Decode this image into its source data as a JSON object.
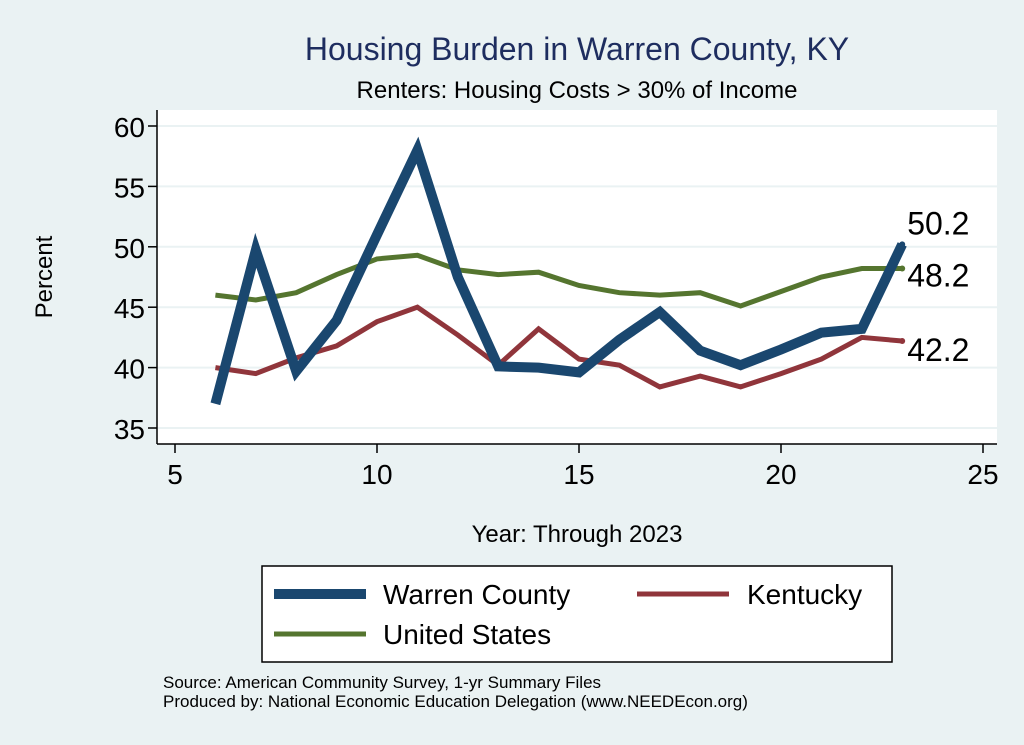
{
  "chart_data": {
    "type": "line",
    "title": "Housing Burden in Warren County, KY",
    "subtitle": "Renters: Housing Costs > 30% of Income",
    "xlabel": "Year: Through 2023",
    "ylabel": "Percent",
    "xlim": [
      5,
      25
    ],
    "ylim": [
      34,
      61
    ],
    "xticks": [
      5,
      10,
      15,
      20,
      25
    ],
    "yticks": [
      35,
      40,
      45,
      50,
      55,
      60
    ],
    "grid": true,
    "legend_position": "bottom",
    "series": [
      {
        "name": "Warren County",
        "color": "#1a476f",
        "x": [
          6,
          7,
          8,
          9,
          10,
          11,
          12,
          13,
          14,
          15,
          16,
          17,
          18,
          19,
          20,
          21,
          22,
          23
        ],
        "values": [
          37.0,
          49.7,
          39.7,
          43.9,
          51.0,
          58.0,
          47.5,
          40.1,
          40.0,
          39.6,
          42.3,
          44.6,
          41.4,
          40.2,
          41.5,
          42.9,
          43.2,
          50.2
        ],
        "end_label": "50.2"
      },
      {
        "name": "Kentucky",
        "color": "#90353b",
        "x": [
          6,
          7,
          8,
          9,
          10,
          11,
          12,
          13,
          14,
          15,
          16,
          17,
          18,
          19,
          20,
          21,
          22,
          23
        ],
        "values": [
          40.0,
          39.5,
          40.8,
          41.8,
          43.8,
          45.0,
          42.7,
          40.2,
          43.2,
          40.7,
          40.2,
          38.4,
          39.3,
          38.4,
          39.5,
          40.7,
          42.5,
          42.2
        ],
        "end_label": "42.2"
      },
      {
        "name": "United States",
        "color": "#55752f",
        "x": [
          6,
          7,
          8,
          9,
          10,
          11,
          12,
          13,
          14,
          15,
          16,
          17,
          18,
          19,
          20,
          21,
          22,
          23
        ],
        "values": [
          46.0,
          45.6,
          46.2,
          47.7,
          49.0,
          49.3,
          48.1,
          47.7,
          47.9,
          46.8,
          46.2,
          46.0,
          46.2,
          45.1,
          46.3,
          47.5,
          48.2,
          48.2
        ],
        "end_label": "48.2"
      }
    ]
  },
  "footer": {
    "source": "Source: American Community Survey, 1-yr Summary Files",
    "produced": "Produced by: National Economic Education Delegation (www.NEEDEcon.org)"
  }
}
